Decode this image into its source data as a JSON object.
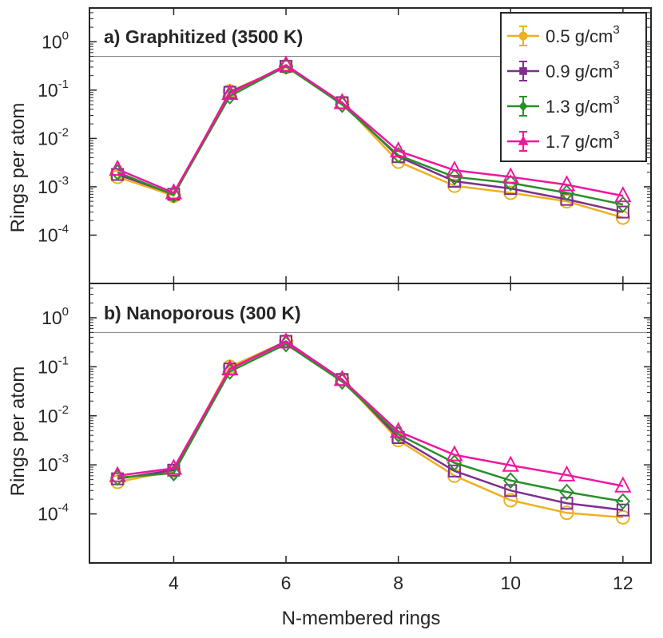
{
  "chart_data": {
    "type": "line",
    "xlabel": "N-membered rings",
    "ylabel": "Rings per atom",
    "yscale": "log",
    "xlim": [
      2.5,
      12.5
    ],
    "ylim": [
      1e-05,
      5
    ],
    "x_ticks": [
      4,
      6,
      8,
      10,
      12
    ],
    "y_ticks": [
      {
        "base": "10",
        "exp": "0",
        "value": 1
      },
      {
        "base": "10",
        "exp": "-1",
        "value": 0.1
      },
      {
        "base": "10",
        "exp": "-2",
        "value": 0.01
      },
      {
        "base": "10",
        "exp": "-3",
        "value": 0.001
      },
      {
        "base": "10",
        "exp": "-4",
        "value": 0.0001
      }
    ],
    "reference_line": 0.5,
    "x": [
      3,
      4,
      5,
      6,
      7,
      8,
      9,
      10,
      11,
      12
    ],
    "legend": {
      "position": "top-right",
      "unit": "g/cm",
      "unit_exp": "3",
      "entries": [
        {
          "value": "0.5",
          "color": "#EDB120",
          "marker": "circle"
        },
        {
          "value": "0.9",
          "color": "#7E2F8E",
          "marker": "square"
        },
        {
          "value": "1.3",
          "color": "#2A8F2A",
          "marker": "diamond"
        },
        {
          "value": "1.7",
          "color": "#F0169F",
          "marker": "triangle"
        }
      ]
    },
    "panels": [
      {
        "title": "a) Graphitized (3500 K)",
        "series": [
          {
            "name": "0.5 g/cm3",
            "values": [
              0.0016,
              0.00065,
              0.095,
              0.3,
              0.055,
              0.0033,
              0.00105,
              0.00075,
              0.0005,
              0.00023
            ]
          },
          {
            "name": "0.9 g/cm3",
            "values": [
              0.0018,
              0.0007,
              0.09,
              0.31,
              0.055,
              0.0042,
              0.0013,
              0.00092,
              0.00055,
              0.0003
            ]
          },
          {
            "name": "1.3 g/cm3",
            "values": [
              0.002,
              0.00068,
              0.075,
              0.31,
              0.05,
              0.0045,
              0.0016,
              0.0012,
              0.00075,
              0.00043
            ]
          },
          {
            "name": "1.7 g/cm3",
            "values": [
              0.0023,
              0.00075,
              0.085,
              0.33,
              0.055,
              0.0055,
              0.0022,
              0.0016,
              0.0011,
              0.00065
            ]
          }
        ]
      },
      {
        "title": "b) Nanoporous (300 K)",
        "series": [
          {
            "name": "0.5 g/cm3",
            "values": [
              0.00045,
              0.00075,
              0.1,
              0.33,
              0.055,
              0.0032,
              0.0006,
              0.00019,
              0.000105,
              8.5e-05
            ]
          },
          {
            "name": "0.9 g/cm3",
            "values": [
              0.00052,
              0.00078,
              0.09,
              0.33,
              0.055,
              0.0036,
              0.00075,
              0.0003,
              0.000165,
              0.00012
            ]
          },
          {
            "name": "1.3 g/cm3",
            "values": [
              0.00055,
              0.00068,
              0.08,
              0.29,
              0.05,
              0.0042,
              0.0011,
              0.00048,
              0.00028,
              0.00018
            ]
          },
          {
            "name": "1.7 g/cm3",
            "values": [
              0.0006,
              0.00085,
              0.09,
              0.32,
              0.055,
              0.0048,
              0.0016,
              0.00098,
              0.00062,
              0.00037
            ]
          }
        ]
      }
    ]
  }
}
